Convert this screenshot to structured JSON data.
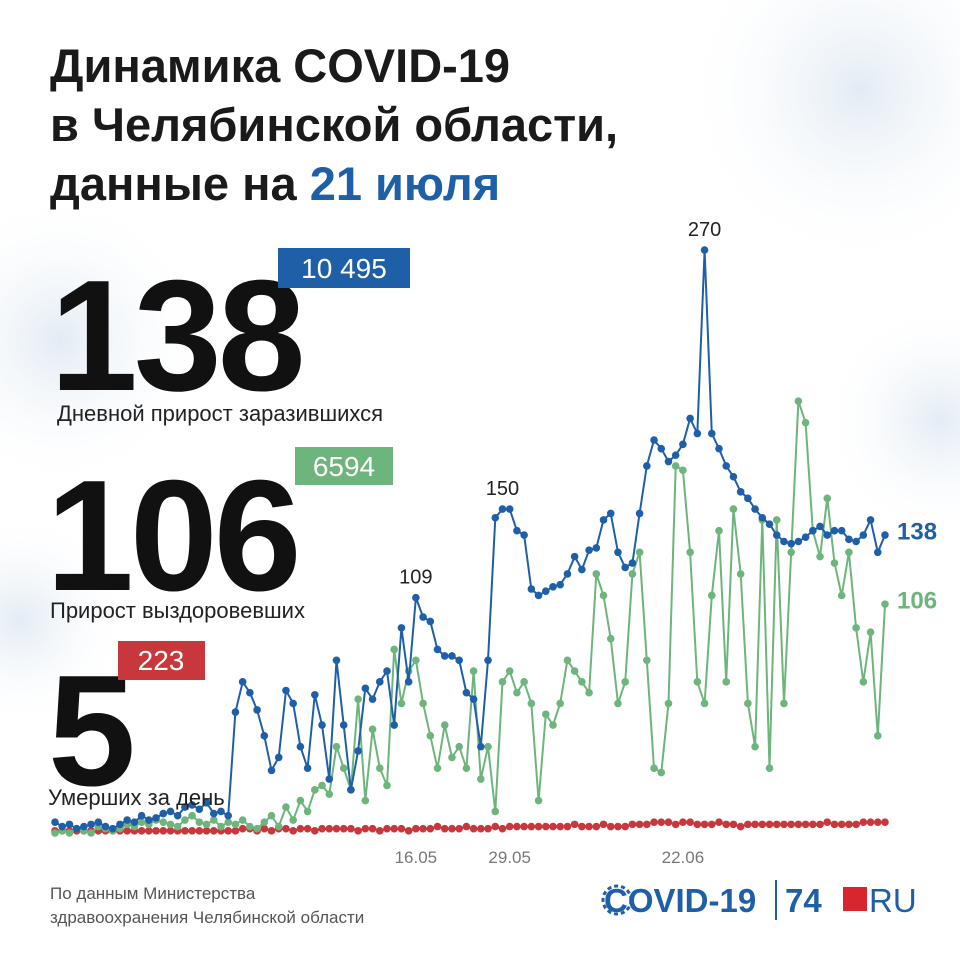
{
  "title": {
    "line1": "Динамика COVID-19",
    "line2": "в Челябинской области,",
    "line3_prefix": "данные на",
    "line3_date": "21 июля"
  },
  "stats": [
    {
      "value": "138",
      "badge": "10 495",
      "label": "Дневной прирост заразившихся"
    },
    {
      "value": "106",
      "badge": "6594",
      "label": "Прирост выздоровевших"
    },
    {
      "value": "5",
      "badge": "223",
      "label": "Умерших за день"
    }
  ],
  "chart_data": {
    "type": "line",
    "ylim": [
      0,
      270
    ],
    "categories": [
      null,
      null,
      null,
      null,
      null,
      null,
      null,
      null,
      null,
      null,
      null,
      null,
      null,
      null,
      null,
      null,
      null,
      null,
      null,
      null,
      null,
      null,
      null,
      null,
      null,
      null,
      null,
      null,
      null,
      null,
      null,
      null,
      null,
      null,
      null,
      null,
      null,
      null,
      null,
      null,
      null,
      null,
      null,
      null,
      null,
      null,
      null,
      null,
      null,
      null,
      "16.05",
      null,
      null,
      null,
      null,
      null,
      null,
      null,
      null,
      null,
      null,
      null,
      null,
      "29.05",
      null,
      null,
      null,
      null,
      null,
      null,
      null,
      null,
      null,
      null,
      null,
      null,
      null,
      null,
      null,
      null,
      null,
      null,
      null,
      null,
      null,
      null,
      null,
      "22.06",
      null,
      null,
      null,
      null,
      null,
      null,
      null,
      null,
      null,
      null,
      null,
      null,
      null,
      null,
      null,
      null,
      null,
      null,
      null,
      null,
      null,
      null,
      null,
      null,
      null,
      null,
      null,
      null
    ],
    "series": [
      {
        "name": "Умершие",
        "color": "#c8373c",
        "values": [
          1,
          1,
          1,
          1,
          1,
          1,
          1,
          1,
          1,
          1,
          1,
          1,
          1,
          1,
          1,
          1,
          1,
          1,
          1,
          1,
          1,
          1,
          1,
          1,
          1,
          1,
          2,
          2,
          1,
          2,
          1,
          2,
          2,
          1,
          2,
          2,
          1,
          2,
          2,
          2,
          2,
          2,
          1,
          2,
          2,
          1,
          2,
          2,
          2,
          1,
          2,
          2,
          2,
          3,
          2,
          2,
          2,
          3,
          2,
          2,
          2,
          3,
          2,
          3,
          3,
          3,
          3,
          3,
          3,
          3,
          3,
          3,
          4,
          3,
          3,
          3,
          4,
          3,
          3,
          3,
          4,
          4,
          4,
          5,
          5,
          5,
          4,
          5,
          5,
          4,
          4,
          4,
          5,
          4,
          4,
          3,
          4,
          4,
          4,
          4,
          4,
          4,
          4,
          4,
          4,
          4,
          4,
          5,
          4,
          4,
          4,
          4,
          5,
          5,
          5,
          5
        ]
      },
      {
        "name": "Выздоровевшие",
        "color": "#6db57c",
        "values": [
          0,
          1,
          0,
          2,
          1,
          0,
          3,
          2,
          1,
          2,
          4,
          3,
          5,
          4,
          6,
          5,
          4,
          3,
          6,
          8,
          5,
          4,
          6,
          3,
          5,
          4,
          6,
          3,
          2,
          5,
          8,
          3,
          12,
          6,
          15,
          10,
          20,
          22,
          18,
          40,
          30,
          20,
          62,
          15,
          48,
          30,
          22,
          85,
          60,
          75,
          80,
          60,
          45,
          30,
          50,
          35,
          40,
          30,
          75,
          25,
          40,
          10,
          70,
          75,
          65,
          70,
          60,
          15,
          55,
          50,
          60,
          80,
          75,
          70,
          65,
          120,
          110,
          90,
          60,
          70,
          120,
          130,
          80,
          30,
          28,
          60,
          170,
          168,
          130,
          70,
          60,
          110,
          140,
          70,
          150,
          120,
          60,
          40,
          145,
          30,
          145,
          60,
          130,
          200,
          190,
          140,
          128,
          155,
          125,
          110,
          130,
          95,
          70,
          93,
          45,
          106
        ],
        "value_labels": [
          null,
          null,
          null,
          null,
          null,
          null,
          null,
          null,
          null,
          null,
          null,
          null,
          null,
          null,
          null,
          null,
          null,
          null,
          null,
          null,
          null,
          null,
          null,
          null,
          null,
          null,
          null,
          null,
          null,
          null,
          null,
          null,
          null,
          null,
          null,
          null,
          null,
          null,
          null,
          null,
          null,
          null,
          null,
          null,
          null,
          null,
          null,
          null,
          null,
          null,
          null,
          null,
          null,
          null,
          null,
          null,
          null,
          null,
          null,
          null,
          null,
          null,
          null,
          null,
          null,
          null,
          null,
          null,
          null,
          null,
          null,
          null,
          null,
          null,
          null,
          null,
          null,
          null,
          null,
          null,
          null,
          null,
          null,
          null,
          null,
          null,
          null,
          null,
          null,
          null,
          null,
          null,
          null,
          null,
          null,
          null,
          null,
          null,
          null,
          null,
          null,
          null,
          null,
          null,
          null,
          null,
          null,
          null,
          null,
          null,
          null,
          null,
          null,
          null,
          null,
          "106"
        ]
      },
      {
        "name": "Заразившиеся",
        "color": "#1f5fa8",
        "values": [
          5,
          3,
          4,
          2,
          3,
          4,
          5,
          3,
          2,
          4,
          6,
          5,
          8,
          6,
          7,
          9,
          10,
          8,
          12,
          13,
          11,
          14,
          9,
          10,
          8,
          56,
          70,
          65,
          57,
          45,
          29,
          35,
          66,
          60,
          40,
          30,
          64,
          50,
          25,
          80,
          50,
          20,
          38,
          67,
          62,
          70,
          75,
          50,
          95,
          70,
          109,
          100,
          98,
          85,
          82,
          82,
          80,
          65,
          62,
          40,
          80,
          146,
          150,
          150,
          140,
          138,
          113,
          110,
          112,
          114,
          115,
          120,
          128,
          122,
          131,
          132,
          145,
          148,
          130,
          123,
          125,
          148,
          170,
          182,
          178,
          172,
          175,
          180,
          192,
          185,
          270,
          185,
          178,
          170,
          165,
          158,
          155,
          150,
          146,
          143,
          138,
          135,
          134,
          135,
          137,
          140,
          142,
          138,
          140,
          140,
          136,
          135,
          138,
          145,
          130,
          138
        ],
        "value_labels": [
          null,
          null,
          null,
          null,
          null,
          null,
          null,
          null,
          null,
          null,
          null,
          null,
          null,
          null,
          null,
          null,
          null,
          null,
          null,
          null,
          null,
          null,
          null,
          null,
          null,
          null,
          null,
          null,
          null,
          null,
          null,
          null,
          null,
          null,
          null,
          null,
          null,
          null,
          null,
          null,
          null,
          null,
          null,
          null,
          null,
          null,
          null,
          null,
          null,
          null,
          "109",
          null,
          null,
          null,
          null,
          null,
          null,
          null,
          null,
          null,
          null,
          null,
          "150",
          null,
          null,
          null,
          null,
          null,
          null,
          null,
          null,
          null,
          null,
          null,
          null,
          null,
          null,
          null,
          null,
          null,
          null,
          null,
          null,
          null,
          null,
          null,
          null,
          null,
          null,
          null,
          "270",
          null,
          null,
          null,
          null,
          null,
          null,
          null,
          null,
          null,
          null,
          null,
          null,
          null,
          null,
          null,
          null,
          null,
          null,
          null,
          null,
          null,
          null,
          null,
          null,
          "138"
        ]
      }
    ]
  },
  "footer": {
    "source": [
      "По данным Министерства",
      "здравоохранения Челябинской области"
    ],
    "logo": {
      "covid": "COVID-19",
      "num": "74",
      "ru": "RU"
    }
  }
}
